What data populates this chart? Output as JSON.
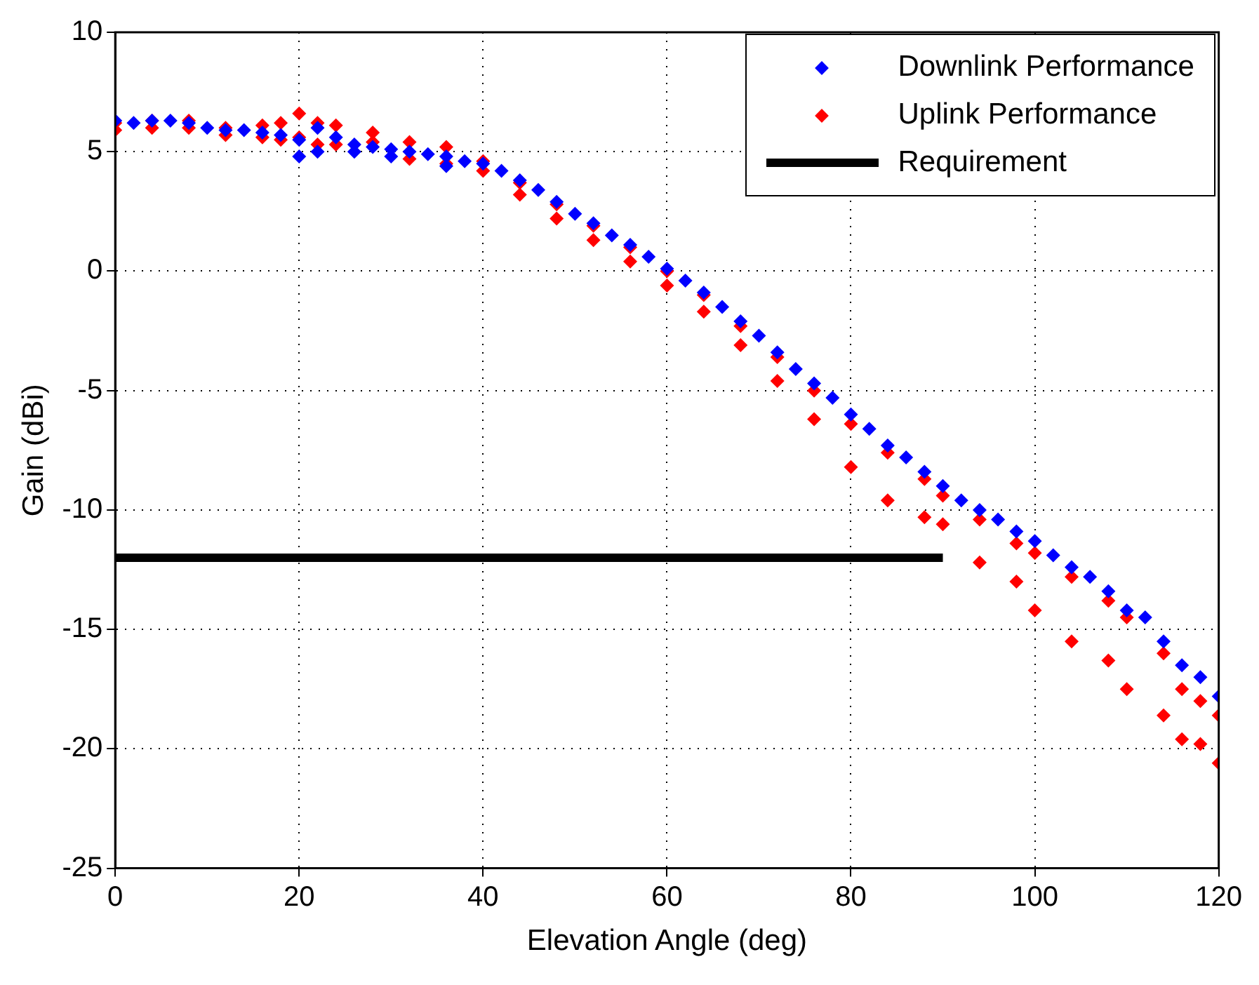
{
  "chart_data": {
    "type": "scatter",
    "xlabel": "Elevation Angle (deg)",
    "ylabel": "Gain (dBi)",
    "xlim": [
      0,
      120
    ],
    "xticks": [
      0,
      20,
      40,
      60,
      80,
      100,
      120
    ],
    "ylim": [
      -25,
      10
    ],
    "yticks": [
      -25,
      -20,
      -15,
      -10,
      -5,
      0,
      5,
      10
    ],
    "grid": true,
    "legend": "top right",
    "series": [
      {
        "name": "Downlink Performance",
        "color": "#0000ff",
        "marker": "diamond",
        "x": [
          0,
          2,
          4,
          6,
          8,
          10,
          12,
          14,
          16,
          18,
          20,
          22,
          24,
          26,
          28,
          30,
          32,
          34,
          36,
          38,
          40,
          42,
          44,
          46,
          48,
          50,
          52,
          54,
          56,
          58,
          60,
          62,
          64,
          66,
          68,
          70,
          72,
          74,
          76,
          78,
          80,
          82,
          84,
          86,
          88,
          90,
          92,
          94,
          96,
          98,
          100,
          102,
          104,
          106,
          108,
          110,
          112,
          114,
          116,
          118,
          120,
          20,
          22,
          26,
          30,
          36
        ],
        "values": [
          6.3,
          6.2,
          6.3,
          6.3,
          6.2,
          6.0,
          5.9,
          5.9,
          5.8,
          5.7,
          5.5,
          6.0,
          5.6,
          5.3,
          5.2,
          5.1,
          5.0,
          4.9,
          4.8,
          4.6,
          4.5,
          4.2,
          3.8,
          3.4,
          2.9,
          2.4,
          2.0,
          1.5,
          1.1,
          0.6,
          0.1,
          -0.4,
          -0.9,
          -1.5,
          -2.1,
          -2.7,
          -3.4,
          -4.1,
          -4.7,
          -5.3,
          -6.0,
          -6.6,
          -7.3,
          -7.8,
          -8.4,
          -9.0,
          -9.6,
          -10.0,
          -10.4,
          -10.9,
          -11.3,
          -11.9,
          -12.4,
          -12.8,
          -13.4,
          -14.2,
          -14.5,
          -15.5,
          -16.5,
          -17.0,
          -17.8,
          4.8,
          5.0,
          5.0,
          4.8,
          4.4
        ]
      },
      {
        "name": "Uplink Performance",
        "color": "#ff0000",
        "marker": "diamond",
        "x": [
          0,
          0,
          4,
          4,
          8,
          8,
          12,
          12,
          16,
          16,
          18,
          18,
          20,
          20,
          22,
          22,
          24,
          24,
          28,
          28,
          32,
          32,
          36,
          36,
          40,
          40,
          44,
          44,
          48,
          48,
          52,
          52,
          56,
          56,
          60,
          60,
          64,
          64,
          68,
          68,
          72,
          72,
          76,
          76,
          80,
          80,
          84,
          84,
          88,
          88,
          90,
          90,
          94,
          94,
          98,
          98,
          100,
          100,
          104,
          104,
          108,
          108,
          110,
          110,
          114,
          114,
          116,
          116,
          118,
          118,
          120,
          120
        ],
        "values": [
          6.2,
          5.9,
          6.3,
          6.0,
          6.3,
          6.0,
          6.0,
          5.7,
          6.1,
          5.6,
          6.2,
          5.5,
          6.6,
          5.6,
          6.2,
          5.3,
          6.1,
          5.3,
          5.8,
          5.4,
          5.4,
          4.7,
          5.2,
          4.5,
          4.6,
          4.2,
          3.7,
          3.2,
          2.8,
          2.2,
          1.9,
          1.3,
          1.0,
          0.4,
          0.0,
          -0.6,
          -1.0,
          -1.7,
          -2.3,
          -3.1,
          -3.6,
          -4.6,
          -5.0,
          -6.2,
          -6.4,
          -8.2,
          -7.6,
          -9.6,
          -8.7,
          -10.3,
          -9.4,
          -10.6,
          -10.4,
          -12.2,
          -11.4,
          -13.0,
          -11.8,
          -14.2,
          -12.8,
          -15.5,
          -13.8,
          -16.3,
          -14.5,
          -17.5,
          -16.0,
          -18.6,
          -17.5,
          -19.6,
          -18.0,
          -19.8,
          -18.6,
          -20.6
        ]
      },
      {
        "name": "Requirement",
        "type": "line",
        "color": "#000000",
        "marker": "none",
        "x": [
          0,
          90
        ],
        "values": [
          -12,
          -12
        ]
      }
    ]
  }
}
